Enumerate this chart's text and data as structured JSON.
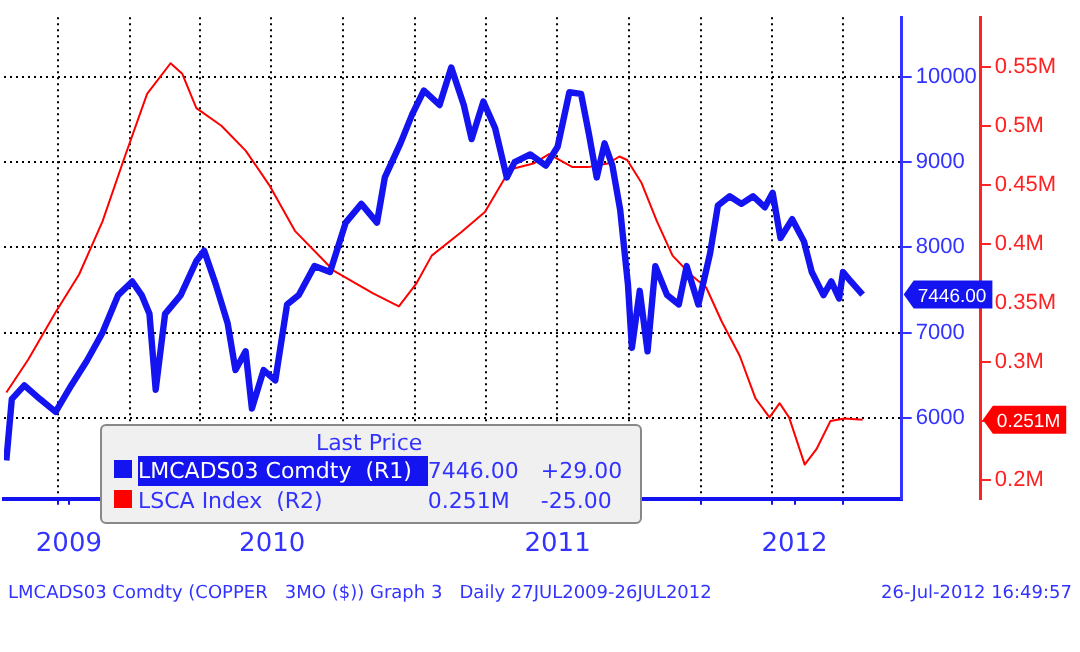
{
  "chart_data": {
    "type": "line",
    "legend_title": "Last Price",
    "legend": "bottom left",
    "grid": true,
    "xlim": [
      "2009-07-24",
      "2012-09-14"
    ],
    "xticks": [
      {
        "value": "2009-10-01",
        "label": null
      },
      {
        "value": "2009-10-15",
        "label": "2009"
      },
      {
        "value": "2010-01-01",
        "label": null
      },
      {
        "value": "2010-04-01",
        "label": null
      },
      {
        "value": "2010-07-01",
        "label": null
      },
      {
        "value": "2010-07-02",
        "label": "2010"
      },
      {
        "value": "2010-10-01",
        "label": null
      },
      {
        "value": "2011-01-01",
        "label": null
      },
      {
        "value": "2011-04-01",
        "label": null
      },
      {
        "value": "2011-07-01",
        "label": null
      },
      {
        "value": "2011-07-02",
        "label": "2011"
      },
      {
        "value": "2011-10-01",
        "label": null
      },
      {
        "value": "2012-01-01",
        "label": null
      },
      {
        "value": "2012-04-01",
        "label": null
      },
      {
        "value": "2012-04-30",
        "label": "2012"
      },
      {
        "value": "2012-07-01",
        "label": null
      }
    ],
    "ylim": [
      5050,
      10700
    ],
    "yticks": [
      6000,
      7000,
      8000,
      9000,
      10000
    ],
    "y2lim": [
      0.184,
      0.592
    ],
    "y2ticks": [
      {
        "value": 0.2,
        "label": "0.2M"
      },
      {
        "value": 0.25,
        "label": null
      },
      {
        "value": 0.3,
        "label": "0.3M"
      },
      {
        "value": 0.35,
        "label": "0.35M"
      },
      {
        "value": 0.4,
        "label": "0.4M"
      },
      {
        "value": 0.45,
        "label": "0.45M"
      },
      {
        "value": 0.5,
        "label": "0.5M"
      },
      {
        "value": 0.55,
        "label": "0.55M"
      }
    ],
    "series": [
      {
        "name": "LMCADS03 Comdty  (R1)",
        "color": "#1414f0",
        "x": [
          "2009-07-27",
          "2009-08-03",
          "2009-08-19",
          "2009-09-08",
          "2009-09-28",
          "2009-10-18",
          "2009-11-07",
          "2009-11-27",
          "2009-12-17",
          "2010-01-04",
          "2010-01-16",
          "2010-01-26",
          "2010-02-03",
          "2010-02-15",
          "2010-03-07",
          "2010-03-27",
          "2010-04-06",
          "2010-04-21",
          "2010-05-06",
          "2010-05-16",
          "2010-05-29",
          "2010-06-06",
          "2010-06-21",
          "2010-07-06",
          "2010-07-21",
          "2010-08-05",
          "2010-08-25",
          "2010-09-14",
          "2010-10-04",
          "2010-10-24",
          "2010-11-13",
          "2010-11-23",
          "2010-12-13",
          "2010-12-28",
          "2011-01-12",
          "2011-02-01",
          "2011-02-16",
          "2011-03-04",
          "2011-03-14",
          "2011-03-29",
          "2011-04-13",
          "2011-04-28",
          "2011-05-08",
          "2011-05-28",
          "2011-06-17",
          "2011-07-02",
          "2011-07-17",
          "2011-08-01",
          "2011-08-11",
          "2011-08-21",
          "2011-08-31",
          "2011-09-10",
          "2011-09-20",
          "2011-09-30",
          "2011-10-05",
          "2011-10-15",
          "2011-10-25",
          "2011-11-04",
          "2011-11-19",
          "2011-12-04",
          "2011-12-14",
          "2011-12-29",
          "2012-01-13",
          "2012-01-23",
          "2012-02-07",
          "2012-02-22",
          "2012-03-08",
          "2012-03-23",
          "2012-04-02",
          "2012-04-12",
          "2012-04-27",
          "2012-05-12",
          "2012-05-22",
          "2012-06-06",
          "2012-06-16",
          "2012-06-26",
          "2012-07-01",
          "2012-07-11",
          "2012-07-26"
        ],
        "values": [
          5500,
          6220,
          6380,
          6220,
          6070,
          6380,
          6670,
          7000,
          7440,
          7600,
          7440,
          7220,
          6330,
          7220,
          7440,
          7840,
          7960,
          7560,
          7110,
          6560,
          6780,
          6110,
          6560,
          6440,
          7330,
          7440,
          7780,
          7710,
          8290,
          8510,
          8290,
          8820,
          9220,
          9560,
          9840,
          9670,
          10110,
          9670,
          9270,
          9710,
          9400,
          8820,
          9000,
          9090,
          8960,
          9180,
          9820,
          9800,
          9330,
          8820,
          9220,
          8960,
          8440,
          7560,
          6820,
          7490,
          6780,
          7780,
          7440,
          7330,
          7780,
          7330,
          7930,
          8490,
          8600,
          8510,
          8600,
          8470,
          8640,
          8110,
          8330,
          8070,
          7710,
          7440,
          7600,
          7400,
          7710,
          7600,
          7446
        ]
      },
      {
        "name": "LSCA Index  (R2)",
        "color": "#ff0000",
        "axis": "y2",
        "x": [
          "2009-07-27",
          "2009-08-24",
          "2009-09-28",
          "2009-10-28",
          "2009-11-27",
          "2009-12-24",
          "2010-01-23",
          "2010-02-22",
          "2010-03-09",
          "2010-03-27",
          "2010-04-28",
          "2010-05-29",
          "2010-06-28",
          "2010-07-31",
          "2010-09-19",
          "2010-11-08",
          "2010-12-11",
          "2011-01-02",
          "2011-01-22",
          "2011-03-01",
          "2011-03-31",
          "2011-05-02",
          "2011-06-01",
          "2011-06-21",
          "2011-07-21",
          "2011-08-10",
          "2011-09-04",
          "2011-09-19",
          "2011-09-29",
          "2011-10-17",
          "2011-11-06",
          "2011-11-26",
          "2011-12-19",
          "2012-01-08",
          "2012-01-28",
          "2012-02-20",
          "2012-03-11",
          "2012-03-29",
          "2012-04-11",
          "2012-04-23",
          "2012-05-13",
          "2012-05-28",
          "2012-06-15",
          "2012-07-03",
          "2012-07-26"
        ],
        "values": [
          0.274,
          0.302,
          0.342,
          0.374,
          0.419,
          0.471,
          0.527,
          0.553,
          0.544,
          0.515,
          0.5,
          0.479,
          0.45,
          0.411,
          0.377,
          0.358,
          0.347,
          0.366,
          0.39,
          0.41,
          0.427,
          0.463,
          0.468,
          0.476,
          0.465,
          0.465,
          0.468,
          0.474,
          0.471,
          0.452,
          0.419,
          0.39,
          0.374,
          0.363,
          0.334,
          0.305,
          0.269,
          0.253,
          0.265,
          0.253,
          0.213,
          0.226,
          0.25,
          0.252,
          0.251
        ]
      }
    ],
    "annotations": [
      "7446.00",
      "+29.00",
      "0.251M",
      "-25.00",
      "LMCADS03 Comdty (COPPER   3MO ($)) Graph 3   Daily 27JUL2009-26JUL2012",
      "26-Jul-2012 16:49:57"
    ]
  }
}
